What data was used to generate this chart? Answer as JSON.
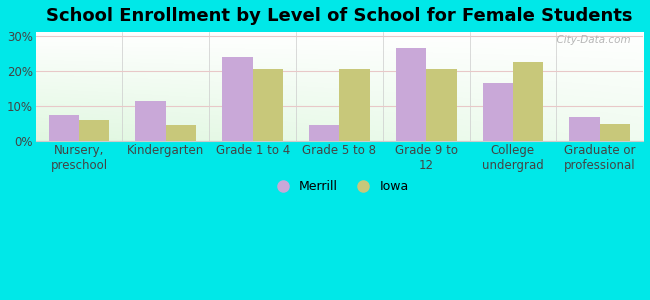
{
  "title": "School Enrollment by Level of School for Female Students",
  "categories": [
    "Nursery,\npreschool",
    "Kindergarten",
    "Grade 1 to 4",
    "Grade 5 to 8",
    "Grade 9 to\n12",
    "College\nundergrad",
    "Graduate or\nprofessional"
  ],
  "merrill_values": [
    7.5,
    11.5,
    24.0,
    4.5,
    26.5,
    16.5,
    7.0
  ],
  "iowa_values": [
    6.0,
    4.5,
    20.5,
    20.5,
    20.5,
    22.5,
    5.0
  ],
  "merrill_color": "#c9a8d8",
  "iowa_color": "#c8c87a",
  "bg_outer": "#00e8e8",
  "yticks": [
    0,
    10,
    20,
    30
  ],
  "ytick_labels": [
    "0%",
    "10%",
    "20%",
    "30%"
  ],
  "ylim": [
    0,
    31
  ],
  "legend_merrill": "Merrill",
  "legend_iowa": "Iowa",
  "title_fontsize": 13,
  "tick_fontsize": 8.5,
  "legend_fontsize": 9,
  "watermark": "  City-Data.com"
}
